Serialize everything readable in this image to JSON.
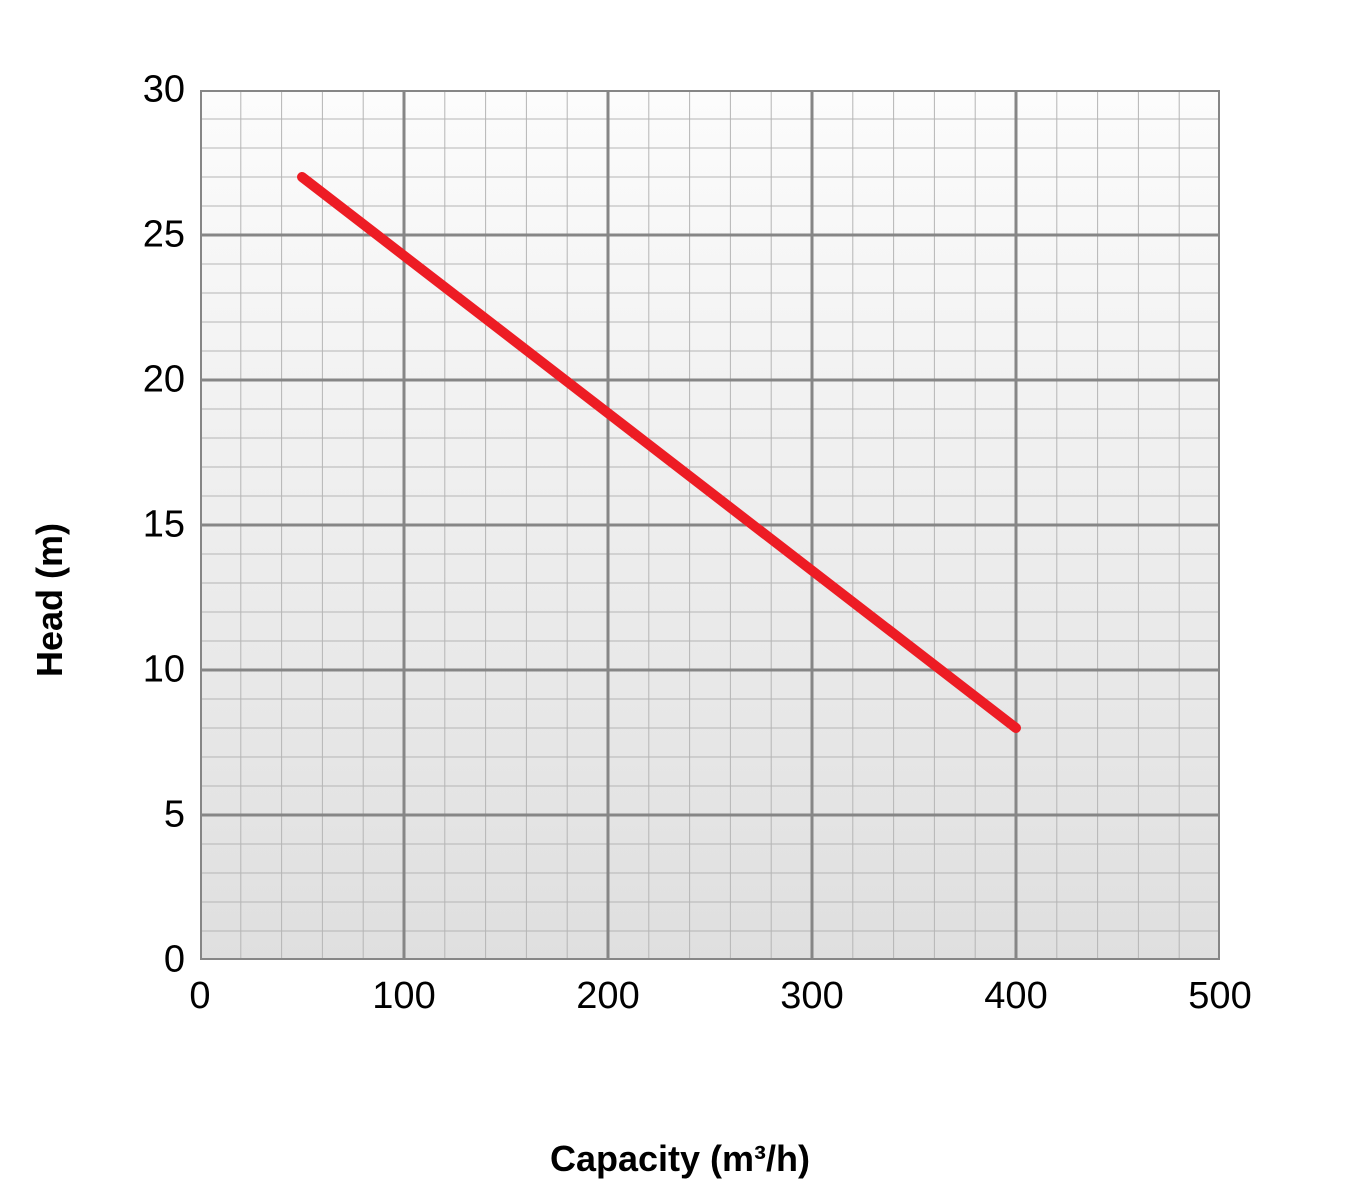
{
  "chart": {
    "type": "line",
    "xlabel": "Capacity (m³/h)",
    "ylabel": "Head (m)",
    "label_fontsize": 36,
    "label_fontweight": "bold",
    "tick_fontsize": 38,
    "xlim": [
      0,
      500
    ],
    "ylim": [
      0,
      30
    ],
    "x_major_ticks": [
      0,
      100,
      200,
      300,
      400,
      500
    ],
    "y_major_ticks": [
      0,
      5,
      10,
      15,
      20,
      25,
      30
    ],
    "x_minor_step": 20,
    "y_minor_step": 1,
    "background_color": "#ffffff",
    "plot_background_start": "#fcfcfc",
    "plot_background_end": "#dfdfdf",
    "major_grid_color": "#868686",
    "minor_grid_color": "#b5b5b5",
    "major_grid_width": 3,
    "minor_grid_width": 1,
    "border_color": "#868686",
    "border_width": 4,
    "line": {
      "color": "#ed1c24",
      "width": 10,
      "points": [
        {
          "x": 50,
          "y": 27
        },
        {
          "x": 400,
          "y": 8
        }
      ]
    }
  }
}
